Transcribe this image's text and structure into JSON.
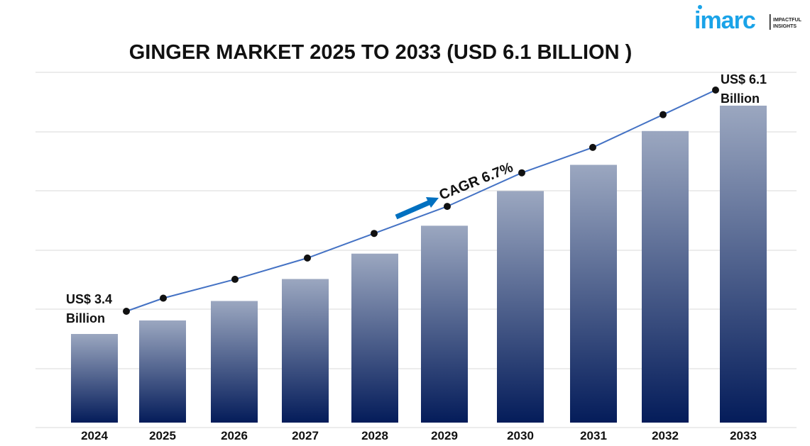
{
  "title": "GINGER MARKET 2025 TO 2033 (USD 6.1 BILLION )",
  "logo": {
    "brand": "imarc",
    "tagline_1": "IMPACTFUL",
    "tagline_2": "INSIGHTS",
    "color": "#1aa3e8"
  },
  "chart_data": {
    "type": "bar",
    "title": "GINGER MARKET 2025 TO 2033 (USD 6.1 BILLION )",
    "categories": [
      "2024",
      "2025",
      "2026",
      "2027",
      "2028",
      "2029",
      "2030",
      "2031",
      "2032",
      "2033"
    ],
    "values": [
      3.4,
      3.56,
      3.79,
      4.05,
      4.35,
      4.68,
      5.09,
      5.4,
      5.8,
      6.1
    ],
    "unit": "USD Billion",
    "trend_line": true,
    "grid": true,
    "annotations": {
      "start_label_1": "US$ 3.4",
      "start_label_2": "Billion",
      "end_label_1": "US$ 6.1",
      "end_label_2": "Billion",
      "cagr": "CAGR 6.7%"
    },
    "colors": {
      "bar_top": "#9ba7c0",
      "bar_bottom": "#041c5a",
      "line": "#4472c4",
      "arrow": "#0070c0",
      "marker": "#111111"
    }
  }
}
